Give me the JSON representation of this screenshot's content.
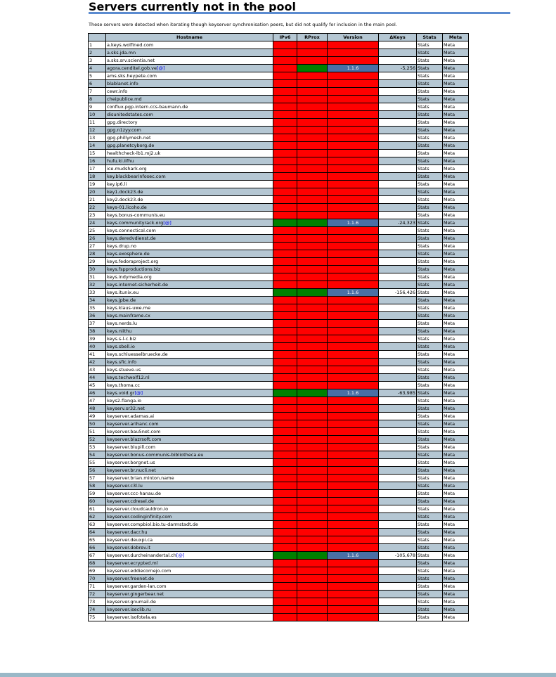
{
  "title": "Servers currently not in the pool",
  "intro": "These servers were detected when iterating though keyserver synchronisation peers, but did not qualify for inclusion in the main pool.",
  "columns": [
    "Hostname",
    "IPv6",
    "RProx",
    "Version",
    "ΔKeys",
    "Stats",
    "Meta"
  ],
  "link_stats": "Stats",
  "link_meta": "Meta",
  "at_link": "[@]",
  "colors": {
    "down": "#ff0000",
    "up": "#008000",
    "version_bg": "#4a6fa5",
    "stripe": "#b5c7d3",
    "rule": "#5b8bd0"
  },
  "servers": [
    {
      "n": "1",
      "host": "a.keys.wolfined.com"
    },
    {
      "n": "2",
      "host": "a.sks.jda.mn"
    },
    {
      "n": "3",
      "host": "a.sks.srv.scientia.net"
    },
    {
      "n": "4",
      "host": "agora.cenditel.gob.ve",
      "at": true,
      "ipv6": "red",
      "rprox": "grn",
      "version": "1.1.6",
      "dkeys": "-5,256"
    },
    {
      "n": "5",
      "host": "ams.sks.heypete.com"
    },
    {
      "n": "6",
      "host": "blablanet.info"
    },
    {
      "n": "7",
      "host": "cewr.info"
    },
    {
      "n": "8",
      "host": "cheipublice.md"
    },
    {
      "n": "9",
      "host": "conflux.pgp.intern.ccs-baumann.de"
    },
    {
      "n": "10",
      "host": "disunitedstates.com"
    },
    {
      "n": "11",
      "host": "gpg.directory"
    },
    {
      "n": "12",
      "host": "gpg.n1zyy.com"
    },
    {
      "n": "13",
      "host": "gpg.phillymesh.net"
    },
    {
      "n": "14",
      "host": "gpg.planetcyborg.de"
    },
    {
      "n": "15",
      "host": "healthcheck-lb1.mj2.uk"
    },
    {
      "n": "16",
      "host": "hufu.ki.iifhu"
    },
    {
      "n": "17",
      "host": "ice.mudshark.org"
    },
    {
      "n": "18",
      "host": "key.blackbearinfosec.com"
    },
    {
      "n": "19",
      "host": "key.ip6.li"
    },
    {
      "n": "20",
      "host": "key1.dock23.de"
    },
    {
      "n": "21",
      "host": "key2.dock23.de"
    },
    {
      "n": "22",
      "host": "keys-01.licoho.de"
    },
    {
      "n": "23",
      "host": "keys.bonus-communis.eu"
    },
    {
      "n": "24",
      "host": "keys.communityrack.org",
      "at": true,
      "ipv6": "grn",
      "rprox": "grn",
      "version": "1.1.6",
      "dkeys": "-24,323"
    },
    {
      "n": "25",
      "host": "keys.connectical.com"
    },
    {
      "n": "26",
      "host": "keys.deredvdienst.de"
    },
    {
      "n": "27",
      "host": "keys.drup.no"
    },
    {
      "n": "28",
      "host": "keys.exosphere.de"
    },
    {
      "n": "29",
      "host": "keys.fedoraproject.org"
    },
    {
      "n": "30",
      "host": "keys.fspproductions.biz"
    },
    {
      "n": "31",
      "host": "keys.indymedia.org"
    },
    {
      "n": "32",
      "host": "keys.internet-sicherheit.de"
    },
    {
      "n": "33",
      "host": "keys.itunix.eu",
      "ipv6": "grn",
      "rprox": "grn",
      "version": "1.1.6",
      "dkeys": "-156,426"
    },
    {
      "n": "34",
      "host": "keys.jpbe.de"
    },
    {
      "n": "35",
      "host": "keys.klaus-uwe.me"
    },
    {
      "n": "36",
      "host": "keys.mainframe.cx"
    },
    {
      "n": "37",
      "host": "keys.nerds.lu"
    },
    {
      "n": "38",
      "host": "keys.niithu"
    },
    {
      "n": "39",
      "host": "keys.s-l-c.biz"
    },
    {
      "n": "40",
      "host": "keys.sbell.io"
    },
    {
      "n": "41",
      "host": "keys.schluesselbruecke.de"
    },
    {
      "n": "42",
      "host": "keys.sfic.info"
    },
    {
      "n": "43",
      "host": "keys.stueve.us"
    },
    {
      "n": "44",
      "host": "keys.techwolf12.nl"
    },
    {
      "n": "45",
      "host": "keys.thoma.cc"
    },
    {
      "n": "46",
      "host": "keys.void.gr",
      "at": true,
      "ipv6": "grn",
      "rprox": "grn",
      "version": "1.1.6",
      "dkeys": "-63,985"
    },
    {
      "n": "47",
      "host": "keys2.flanga.io"
    },
    {
      "n": "48",
      "host": "keyserv.sr32.net"
    },
    {
      "n": "49",
      "host": "keyserver.adamas.ai"
    },
    {
      "n": "50",
      "host": "keyserver.arihanc.com"
    },
    {
      "n": "51",
      "host": "keyserver.bau5net.com"
    },
    {
      "n": "52",
      "host": "keyserver.blazrsoft.com"
    },
    {
      "n": "53",
      "host": "keyserver.blupill.com"
    },
    {
      "n": "54",
      "host": "keyserver.bonus-communis-bibliotheca.eu"
    },
    {
      "n": "55",
      "host": "keyserver.borgnet.us"
    },
    {
      "n": "56",
      "host": "keyserver.br.nucli.net"
    },
    {
      "n": "57",
      "host": "keyserver.brian.minton.name"
    },
    {
      "n": "58",
      "host": "keyserver.c3l.lu"
    },
    {
      "n": "59",
      "host": "keyserver.ccc-hanau.de"
    },
    {
      "n": "60",
      "host": "keyserver.cdresel.de"
    },
    {
      "n": "61",
      "host": "keyserver.cloudcauldron.io"
    },
    {
      "n": "62",
      "host": "keyserver.codinginfinity.com"
    },
    {
      "n": "63",
      "host": "keyserver.compbiol.bio.tu-darmstadt.de"
    },
    {
      "n": "64",
      "host": "keyserver.dacr.hu"
    },
    {
      "n": "65",
      "host": "keyserver.deuxpi.ca"
    },
    {
      "n": "66",
      "host": "keyserver.dobrev.it"
    },
    {
      "n": "67",
      "host": "keyserver.durcheinandertal.ch",
      "at": true,
      "ipv6": "grn",
      "rprox": "grn",
      "version": "1.1.6",
      "dkeys": "-105,678"
    },
    {
      "n": "68",
      "host": "keyserver.ecrypted.ml"
    },
    {
      "n": "69",
      "host": "keyserver.eddiecornejo.com"
    },
    {
      "n": "70",
      "host": "keyserver.freenet.de"
    },
    {
      "n": "71",
      "host": "keyserver.garden-lan.com"
    },
    {
      "n": "72",
      "host": "keyserver.gingerbear.net"
    },
    {
      "n": "73",
      "host": "keyserver.gnumail.de"
    },
    {
      "n": "74",
      "host": "keyserver.iseclib.ru"
    },
    {
      "n": "75",
      "host": "keyserver.isofotela.es"
    }
  ]
}
